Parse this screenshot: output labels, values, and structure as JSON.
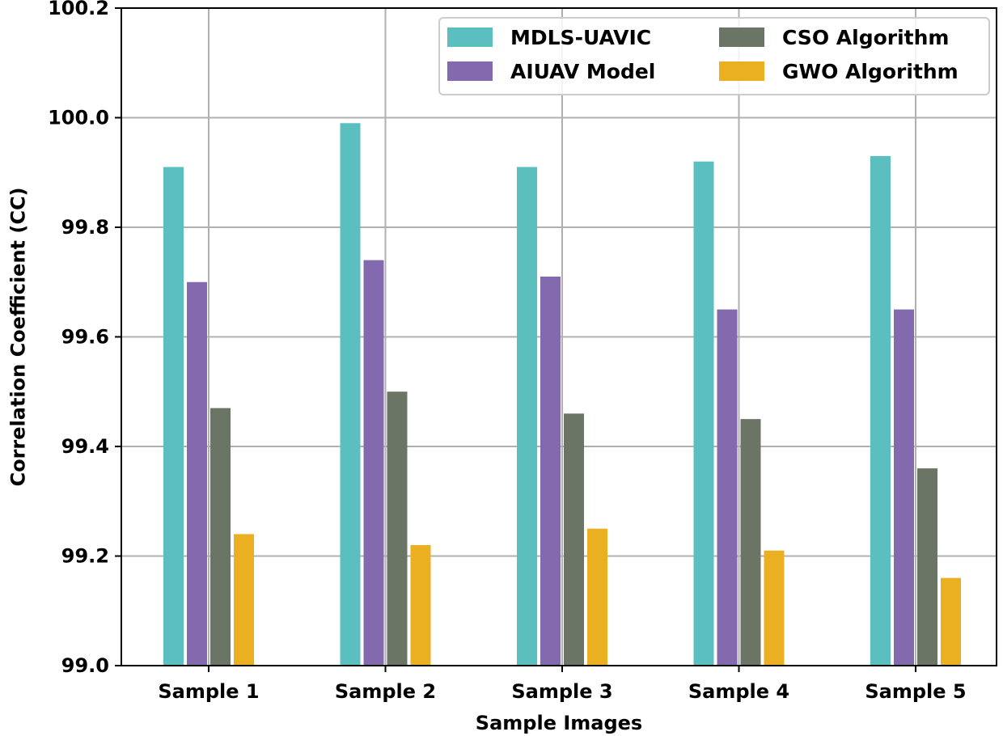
{
  "chart_data": {
    "type": "bar",
    "title": "",
    "xlabel": "Sample Images",
    "ylabel": "Correlation Coefficient (CC)",
    "ylim": [
      99.0,
      100.2
    ],
    "yticks": [
      "99.0",
      "99.2",
      "99.4",
      "99.6",
      "99.8",
      "100.0",
      "100.2"
    ],
    "grid": true,
    "legend_position": "top-right",
    "categories": [
      "Sample 1",
      "Sample 2",
      "Sample 3",
      "Sample 4",
      "Sample 5"
    ],
    "series": [
      {
        "name": "MDLS-UAVIC",
        "color": "#5cbfbf",
        "values": [
          99.91,
          99.99,
          99.91,
          99.92,
          99.93
        ]
      },
      {
        "name": "AIUAV Model",
        "color": "#836aaf",
        "values": [
          99.7,
          99.74,
          99.71,
          99.65,
          99.65
        ]
      },
      {
        "name": "CSO Algorithm",
        "color": "#6b7565",
        "values": [
          99.47,
          99.5,
          99.46,
          99.45,
          99.36
        ]
      },
      {
        "name": "GWO Algorithm",
        "color": "#ebaf22",
        "values": [
          99.24,
          99.22,
          99.25,
          99.21,
          99.16
        ]
      }
    ]
  }
}
